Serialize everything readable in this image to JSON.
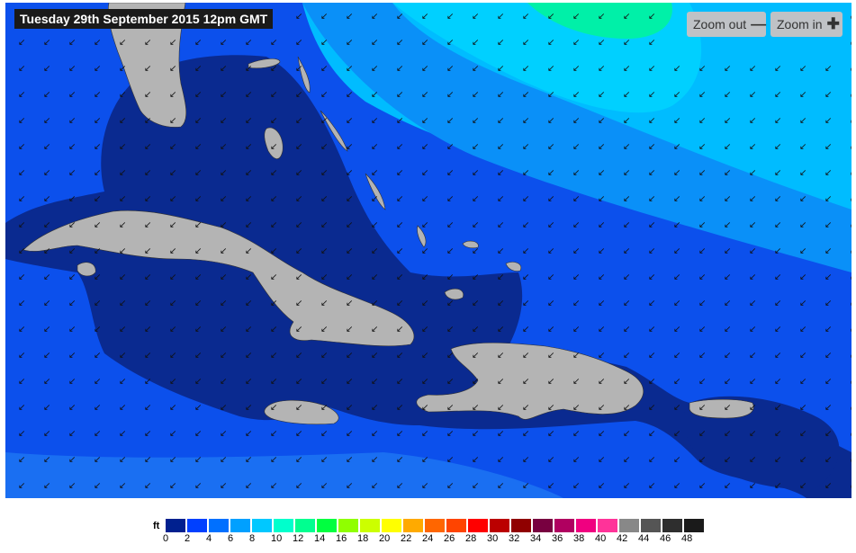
{
  "title": "Tuesday 29th September 2015 12pm GMT",
  "controls": {
    "zoom_out": "Zoom out",
    "zoom_out_icon": "minus-icon",
    "zoom_in": "Zoom in",
    "zoom_in_icon": "plus-icon"
  },
  "legend": {
    "unit": "ft",
    "labels": [
      "0",
      "2",
      "4",
      "6",
      "8",
      "10",
      "12",
      "14",
      "16",
      "18",
      "20",
      "22",
      "24",
      "26",
      "28",
      "30",
      "32",
      "34",
      "36",
      "38",
      "40",
      "42",
      "44",
      "46",
      "48"
    ],
    "colors": [
      "#00208f",
      "#0040ff",
      "#0070ff",
      "#00a0ff",
      "#00c8ff",
      "#00ffcc",
      "#00ff90",
      "#00ff40",
      "#90ff00",
      "#ccff00",
      "#ffff00",
      "#ffaa00",
      "#ff6600",
      "#ff4400",
      "#ff0000",
      "#bb0000",
      "#900000",
      "#780040",
      "#b00060",
      "#f00080",
      "#ff3399",
      "#888888",
      "#555555",
      "#2e2e2e",
      "#1a1a1a"
    ]
  },
  "map": {
    "land_color": "#b4b4b4",
    "arrow_icon": "wave-direction-arrow-icon"
  }
}
